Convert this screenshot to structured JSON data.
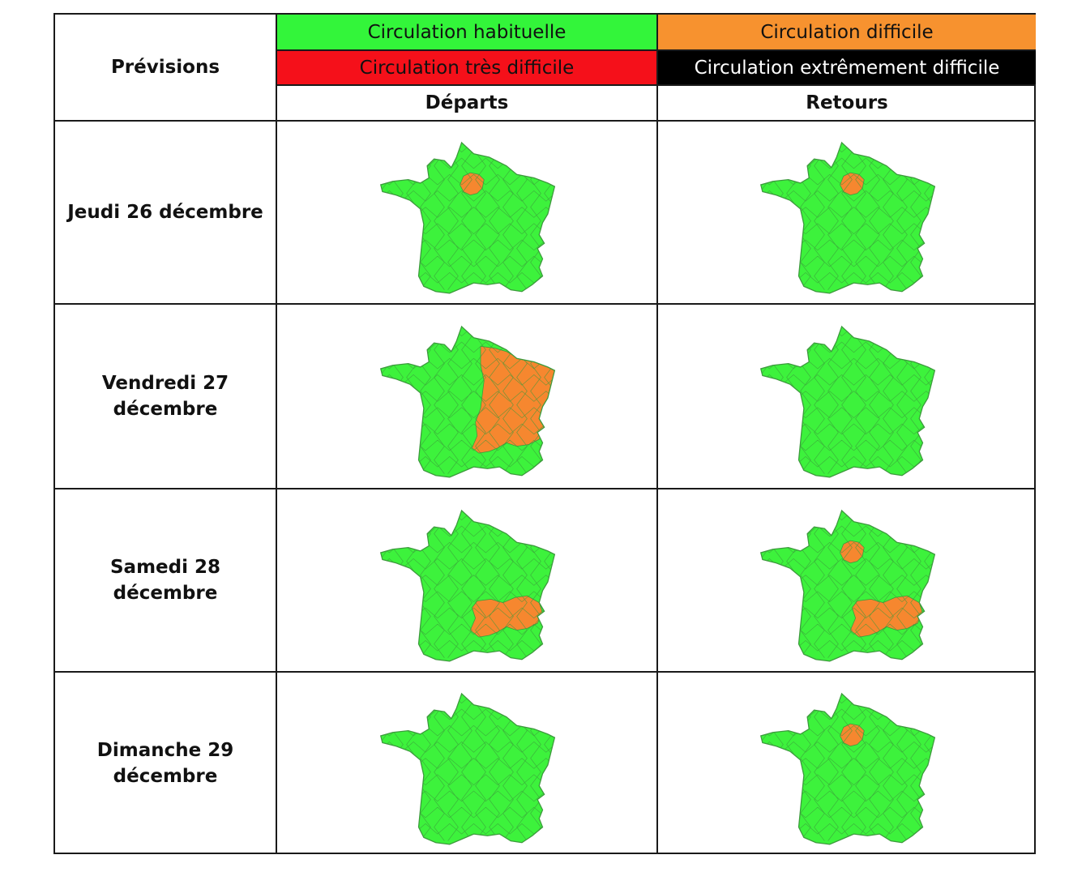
{
  "table": {
    "corner_label": "Prévisions",
    "legend": [
      {
        "label": "Circulation habituelle",
        "bg": "#33f53a",
        "fg": "#111111"
      },
      {
        "label": "Circulation difficile",
        "bg": "#f7922f",
        "fg": "#111111"
      },
      {
        "label": "Circulation très difficile",
        "bg": "#f5101a",
        "fg": "#111111"
      },
      {
        "label": "Circulation extrêmement difficile",
        "bg": "#000000",
        "fg": "#ffffff"
      }
    ],
    "columns": [
      "Départs",
      "Retours"
    ],
    "rows": [
      {
        "day": "Jeudi 26 décembre",
        "departs": [
          "paris"
        ],
        "retours": [
          "paris"
        ]
      },
      {
        "day": "Vendredi 27\ndécembre",
        "departs": [
          "east"
        ],
        "retours": []
      },
      {
        "day": "Samedi 28\ndécembre",
        "departs": [
          "rhone"
        ],
        "retours": [
          "paris",
          "rhone"
        ]
      },
      {
        "day": "Dimanche 29\ndécembre",
        "departs": [],
        "retours": [
          "paris"
        ]
      }
    ]
  },
  "colors": {
    "normal": "#3df23c",
    "difficult": "#f6872f",
    "border": "#3c9a3c"
  }
}
